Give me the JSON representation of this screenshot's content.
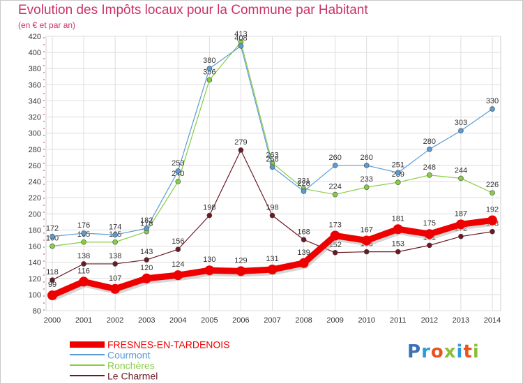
{
  "title": "Evolution des Impôts locaux pour la Commune par Habitant",
  "subtitle": "(en € et par an)",
  "logo": {
    "text": "Proxiti",
    "colors": [
      "#3b6fb6",
      "#2e9bd6",
      "#e8541e",
      "#8bbf3a",
      "#2e9bd6",
      "#e8541e",
      "#8bbf3a"
    ]
  },
  "chart_data": {
    "type": "line",
    "title": "Evolution des Impôts locaux pour la Commune par Habitant",
    "subtitle": "(en € et par an)",
    "x": [
      "2000",
      "2001",
      "2002",
      "2003",
      "2004",
      "2005",
      "2006",
      "2007",
      "2008",
      "2009",
      "2010",
      "2011",
      "2012",
      "2013",
      "2014"
    ],
    "ylim": [
      80,
      420
    ],
    "yticks": [
      "80",
      "100",
      "120",
      "140",
      "160",
      "180",
      "200",
      "220",
      "240",
      "260",
      "280",
      "300",
      "320",
      "340",
      "360",
      "380",
      "400",
      "420"
    ],
    "grid": true,
    "legend_position": "bottom-left",
    "series": [
      {
        "name": "Le Charmel",
        "color": "#6b1a24",
        "values": [
          118,
          138,
          138,
          143,
          156,
          198,
          279,
          198,
          168,
          152,
          153,
          153,
          161,
          172,
          178
        ],
        "labels": [
          "118",
          "138",
          "138",
          "143",
          "156",
          "198",
          "279",
          "198",
          "168",
          "152",
          "153",
          "153",
          "161",
          "172",
          "178"
        ]
      },
      {
        "name": "Ronchères",
        "color": "#88cc44",
        "values": [
          160,
          165,
          165,
          178,
          240,
          366,
          413,
          263,
          231,
          224,
          233,
          239,
          248,
          244,
          226
        ],
        "labels": [
          "160",
          "165",
          "165",
          "178",
          "240",
          "366",
          "413",
          "263",
          "231",
          "224",
          "233",
          "239",
          "248",
          "244",
          "226"
        ]
      },
      {
        "name": "Courmont",
        "color": "#5b9bd5",
        "values": [
          172,
          176,
          174,
          182,
          253,
          380,
          408,
          258,
          228,
          260,
          260,
          251,
          280,
          303,
          330
        ],
        "labels": [
          "172",
          "176",
          "174",
          "182",
          "253",
          "380",
          "408",
          "258",
          "228",
          "260",
          "260",
          "251",
          "280",
          "303",
          "330"
        ]
      },
      {
        "name": "FRESNES-EN-TARDENOIS",
        "color": "#ee0000",
        "values": [
          99,
          116,
          107,
          120,
          124,
          130,
          129,
          131,
          139,
          173,
          167,
          181,
          175,
          187,
          192
        ],
        "labels": [
          "99",
          "116",
          "107",
          "120",
          "124",
          "130",
          "129",
          "131",
          "139",
          "173",
          "167",
          "181",
          "175",
          "187",
          "192"
        ]
      }
    ],
    "legend": [
      {
        "name": "FRESNES-EN-TARDENOIS",
        "color": "#ee0000",
        "thick": true
      },
      {
        "name": "Courmont",
        "color": "#5b9bd5",
        "thick": false
      },
      {
        "name": "Ronchères",
        "color": "#88cc44",
        "thick": false
      },
      {
        "name": "Le Charmel",
        "color": "#6b1a24",
        "thick": false
      }
    ]
  }
}
